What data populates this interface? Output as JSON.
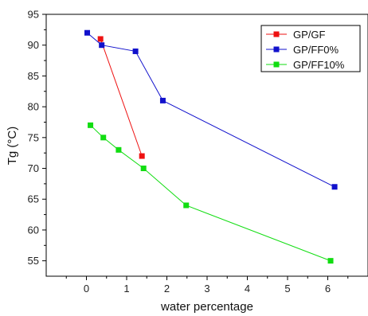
{
  "chart_data": {
    "type": "line",
    "xlabel": "water percentage",
    "ylabel": "Tg (°C)",
    "xlim": [
      -1,
      7
    ],
    "ylim": [
      52.5,
      95
    ],
    "xticks": [
      0,
      1,
      2,
      3,
      4,
      5,
      6
    ],
    "yticks": [
      55,
      60,
      65,
      70,
      75,
      80,
      85,
      90,
      95
    ],
    "grid": false,
    "legend_position": "top-right",
    "series": [
      {
        "name": "GP/GF",
        "color": "#ee1111",
        "x": [
          0.35,
          1.38
        ],
        "y": [
          91,
          72
        ]
      },
      {
        "name": "GP/FF0%",
        "color": "#1111cc",
        "x": [
          0.02,
          0.38,
          1.22,
          1.9,
          6.17
        ],
        "y": [
          92,
          90,
          89,
          81,
          67
        ]
      },
      {
        "name": "GP/FF10%",
        "color": "#11dd11",
        "x": [
          0.1,
          0.42,
          0.8,
          1.42,
          2.48,
          6.07
        ],
        "y": [
          77,
          75,
          73,
          70,
          64,
          55
        ]
      }
    ]
  }
}
